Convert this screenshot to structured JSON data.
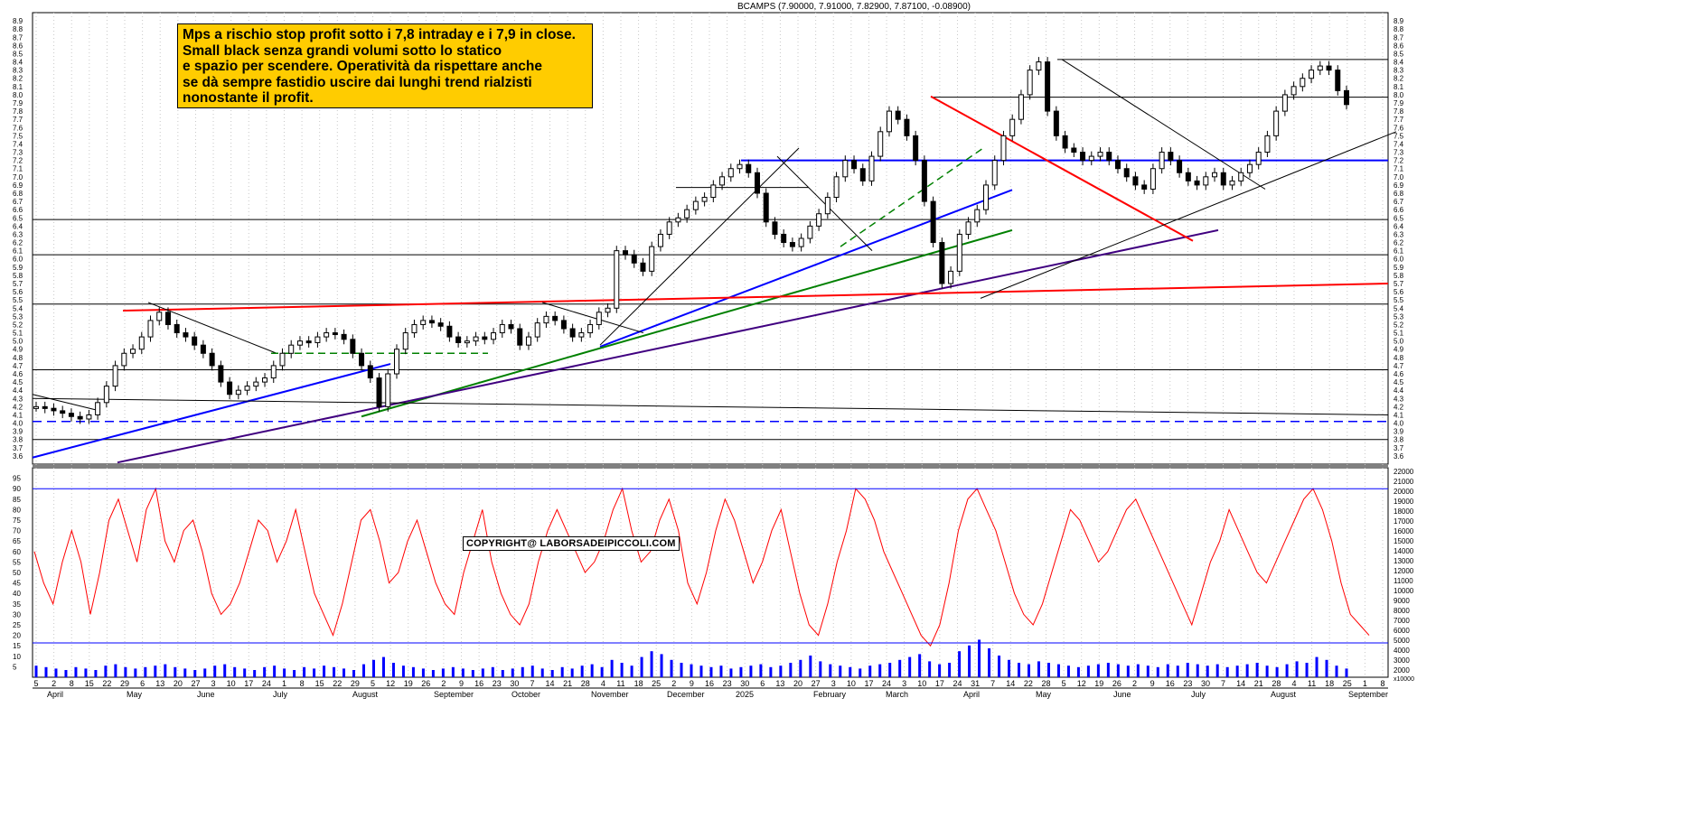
{
  "title": "BCAMPS (7.90000, 7.91000, 7.82900, 7.87100, -0.08900)",
  "note_lines": [
    "Mps a rischio stop profit sotto i 7,8 intraday e i 7,9 in close.",
    "Small black senza grandi volumi sotto lo statico",
    "e spazio per scendere. Operatività da rispettare anche",
    "se dà sempre fastidio uscire dai lunghi trend rialzisti",
    "nonostante il profit."
  ],
  "copyright": "COPYRIGHT@ LABORSADEIPICCOLI.COM",
  "colors": {
    "candle": "#000000",
    "support_blue": "#0000ff",
    "trend_red": "#ff0000",
    "trend_green": "#008000",
    "trend_purple": "#400080",
    "oscillator": "#ff0000",
    "volume": "#0000ff",
    "note_bg": "#ffcc00"
  },
  "chart_data": {
    "type": "line",
    "instrument": "BCAMPS",
    "price_axis": {
      "ylim": [
        3.5,
        9.0
      ],
      "ticks": [
        "3.6",
        "3.7",
        "3.8",
        "3.9",
        "4.0",
        "4.1",
        "4.2",
        "4.3",
        "4.4",
        "4.5",
        "4.6",
        "4.7",
        "4.8",
        "4.9",
        "5.0",
        "5.1",
        "5.2",
        "5.3",
        "5.4",
        "5.5",
        "5.6",
        "5.7",
        "5.8",
        "5.9",
        "6.0",
        "6.1",
        "6.2",
        "6.3",
        "6.4",
        "6.5",
        "6.6",
        "6.7",
        "6.8",
        "6.9",
        "7.0",
        "7.1",
        "7.2",
        "7.3",
        "7.4",
        "7.5",
        "7.6",
        "7.7",
        "7.8",
        "7.9",
        "8.0",
        "8.1",
        "8.2",
        "8.3",
        "8.4",
        "8.5",
        "8.6",
        "8.7",
        "8.8",
        "8.9"
      ]
    },
    "oscillator_axis": {
      "ylim": [
        0,
        100
      ],
      "ticks": [
        "5",
        "10",
        "15",
        "20",
        "25",
        "30",
        "35",
        "40",
        "45",
        "50",
        "55",
        "60",
        "65",
        "70",
        "75",
        "80",
        "85",
        "90",
        "95"
      ]
    },
    "volume_axis": {
      "ticks": [
        "2000",
        "3000",
        "4000",
        "5000",
        "6000",
        "7000",
        "8000",
        "9000",
        "10000",
        "11000",
        "12000",
        "13000",
        "14000",
        "15000",
        "16000",
        "17000",
        "18000",
        "19000",
        "20000",
        "21000",
        "22000"
      ],
      "unit_label": "x10000"
    },
    "x_day_ticks": [
      "5",
      "2",
      "8",
      "15",
      "22",
      "29",
      "6",
      "13",
      "20",
      "27",
      "3",
      "10",
      "17",
      "24",
      "1",
      "8",
      "15",
      "22",
      "29",
      "5",
      "12",
      "19",
      "26",
      "2",
      "9",
      "16",
      "23",
      "30",
      "7",
      "14",
      "21",
      "28",
      "4",
      "11",
      "18",
      "25",
      "2",
      "9",
      "16",
      "23",
      "30",
      "6",
      "13",
      "20",
      "27",
      "3",
      "10",
      "17",
      "24",
      "3",
      "10",
      "17",
      "24",
      "31",
      "7",
      "14",
      "22",
      "28",
      "5",
      "12",
      "19",
      "26",
      "2",
      "9",
      "16",
      "23",
      "30",
      "7",
      "14",
      "21",
      "28",
      "4",
      "11",
      "18",
      "25",
      "1",
      "8"
    ],
    "x_month_labels": [
      "April",
      "May",
      "June",
      "July",
      "August",
      "September",
      "October",
      "November",
      "December",
      "2025",
      "February",
      "March",
      "April",
      "May",
      "June",
      "July",
      "August",
      "September"
    ],
    "close_series": [
      4.2,
      4.18,
      4.15,
      4.12,
      4.08,
      4.05,
      4.1,
      4.25,
      4.45,
      4.7,
      4.85,
      4.9,
      5.05,
      5.25,
      5.35,
      5.2,
      5.1,
      5.05,
      4.95,
      4.85,
      4.7,
      4.5,
      4.35,
      4.4,
      4.45,
      4.5,
      4.55,
      4.7,
      4.85,
      4.95,
      5.0,
      4.98,
      5.05,
      5.1,
      5.08,
      5.02,
      4.85,
      4.7,
      4.55,
      4.2,
      4.6,
      4.9,
      5.1,
      5.2,
      5.25,
      5.22,
      5.18,
      5.05,
      4.98,
      5.0,
      5.05,
      5.02,
      5.1,
      5.2,
      5.15,
      4.95,
      5.05,
      5.22,
      5.3,
      5.25,
      5.15,
      5.05,
      5.1,
      5.2,
      5.35,
      5.4,
      6.1,
      6.05,
      5.95,
      5.85,
      6.15,
      6.3,
      6.45,
      6.5,
      6.6,
      6.7,
      6.75,
      6.9,
      7.0,
      7.1,
      7.15,
      7.05,
      6.8,
      6.45,
      6.3,
      6.2,
      6.15,
      6.25,
      6.4,
      6.55,
      6.75,
      7.0,
      7.2,
      7.1,
      6.95,
      7.25,
      7.55,
      7.8,
      7.7,
      7.5,
      7.2,
      6.7,
      6.2,
      5.7,
      5.85,
      6.3,
      6.45,
      6.6,
      6.9,
      7.2,
      7.5,
      7.7,
      8.0,
      8.3,
      8.4,
      7.8,
      7.5,
      7.35,
      7.3,
      7.2,
      7.25,
      7.3,
      7.2,
      7.1,
      7.0,
      6.9,
      6.85,
      7.1,
      7.3,
      7.2,
      7.05,
      6.95,
      6.9,
      7.0,
      7.05,
      6.9,
      6.95,
      7.05,
      7.15,
      7.3,
      7.5,
      7.8,
      8.0,
      8.1,
      8.2,
      8.3,
      8.35,
      8.3,
      8.05,
      7.88
    ],
    "oscillator_series": [
      60,
      45,
      35,
      55,
      70,
      55,
      30,
      50,
      75,
      85,
      70,
      55,
      80,
      90,
      65,
      55,
      70,
      75,
      60,
      40,
      30,
      35,
      45,
      60,
      75,
      70,
      55,
      65,
      80,
      60,
      40,
      30,
      20,
      35,
      55,
      75,
      80,
      65,
      45,
      50,
      65,
      75,
      60,
      45,
      35,
      30,
      50,
      65,
      80,
      55,
      40,
      30,
      25,
      35,
      55,
      70,
      80,
      70,
      60,
      50,
      55,
      65,
      80,
      90,
      70,
      55,
      60,
      75,
      85,
      70,
      45,
      35,
      50,
      70,
      85,
      75,
      60,
      45,
      55,
      70,
      80,
      60,
      40,
      25,
      20,
      35,
      55,
      70,
      90,
      85,
      75,
      60,
      50,
      40,
      30,
      20,
      15,
      25,
      45,
      70,
      85,
      90,
      80,
      70,
      55,
      40,
      30,
      25,
      35,
      50,
      65,
      80,
      75,
      65,
      55,
      60,
      70,
      80,
      85,
      75,
      65,
      55,
      45,
      35,
      25,
      40,
      55,
      65,
      80,
      70,
      60,
      50,
      45,
      55,
      65,
      75,
      85,
      90,
      80,
      65,
      45,
      30,
      25,
      20
    ],
    "volume_series": [
      8,
      7,
      6,
      5,
      7,
      6,
      5,
      8,
      9,
      7,
      6,
      7,
      8,
      9,
      7,
      6,
      5,
      6,
      8,
      9,
      7,
      6,
      5,
      7,
      8,
      6,
      5,
      7,
      6,
      8,
      7,
      6,
      5,
      9,
      12,
      14,
      10,
      8,
      7,
      6,
      5,
      6,
      7,
      6,
      5,
      6,
      7,
      5,
      6,
      7,
      8,
      6,
      5,
      7,
      6,
      8,
      9,
      7,
      12,
      10,
      8,
      14,
      18,
      16,
      12,
      10,
      9,
      8,
      7,
      8,
      6,
      7,
      8,
      9,
      7,
      8,
      10,
      12,
      15,
      11,
      9,
      8,
      7,
      6,
      8,
      9,
      10,
      12,
      14,
      16,
      11,
      9,
      10,
      18,
      22,
      26,
      20,
      15,
      12,
      10,
      9,
      11,
      10,
      9,
      8,
      7,
      8,
      9,
      10,
      9,
      8,
      9,
      8,
      7,
      9,
      8,
      10,
      9,
      8,
      9,
      7,
      8,
      9,
      10,
      8,
      7,
      9,
      11,
      10,
      14,
      12,
      8,
      6
    ],
    "horizontal_levels": [
      4.02,
      4.65,
      5.45,
      6.05,
      6.48,
      7.2,
      7.97,
      8.43
    ],
    "grid": true
  }
}
